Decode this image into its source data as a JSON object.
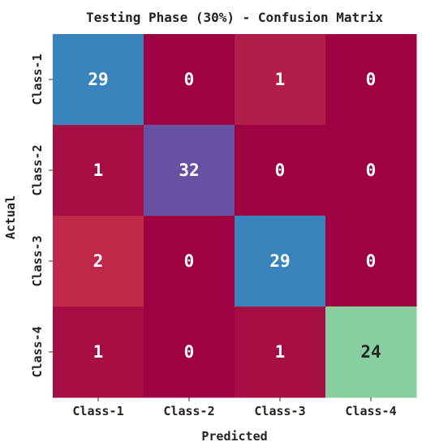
{
  "chart_data": {
    "type": "heatmap",
    "title": "Testing Phase (30%) - Confusion Matrix",
    "xlabel": "Predicted",
    "ylabel": "Actual",
    "x_categories": [
      "Class-1",
      "Class-2",
      "Class-3",
      "Class-4"
    ],
    "y_categories": [
      "Class-1",
      "Class-2",
      "Class-3",
      "Class-4"
    ],
    "matrix": [
      [
        29,
        0,
        1,
        0
      ],
      [
        1,
        32,
        0,
        0
      ],
      [
        2,
        0,
        29,
        0
      ],
      [
        1,
        0,
        1,
        24
      ]
    ],
    "cell_colors": [
      [
        "#3a84bd",
        "#9d0142",
        "#b01d48",
        "#9d0142"
      ],
      [
        "#a40e45",
        "#6651a2",
        "#9d0142",
        "#9d0142"
      ],
      [
        "#c0284a",
        "#9d0142",
        "#3a84bd",
        "#9d0142"
      ],
      [
        "#a40e45",
        "#9d0142",
        "#a40e45",
        "#87cf9f"
      ]
    ],
    "label_colors": [
      [
        "#ffffff",
        "#ffffff",
        "#ffffff",
        "#ffffff"
      ],
      [
        "#ffffff",
        "#ffffff",
        "#ffffff",
        "#ffffff"
      ],
      [
        "#ffffff",
        "#ffffff",
        "#ffffff",
        "#ffffff"
      ],
      [
        "#ffffff",
        "#ffffff",
        "#ffffff",
        "#262626"
      ]
    ],
    "colormap": "Spectral",
    "grid": false
  }
}
